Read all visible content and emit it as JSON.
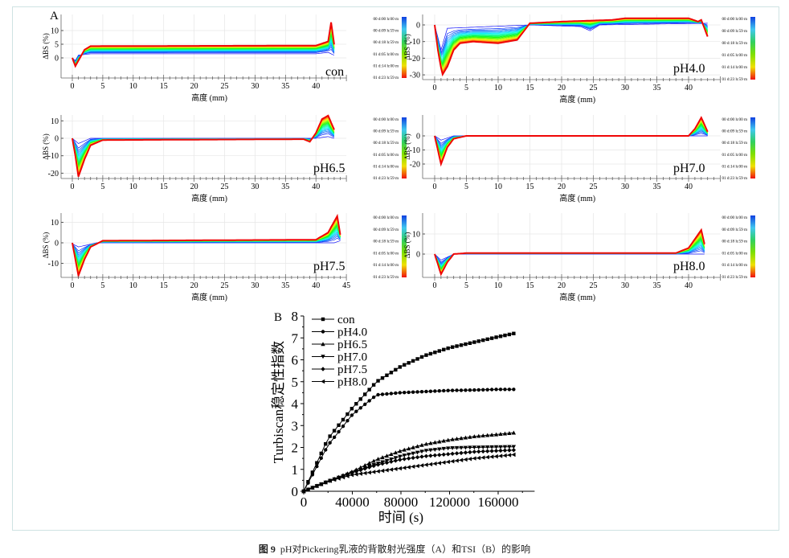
{
  "caption": {
    "figure_no": "图 9",
    "text": "pH对Pickering乳液的背散射光强度（A）和TSI（B）的影响"
  },
  "chart_data": [
    {
      "type": "line",
      "panel_label": "A",
      "label": "con",
      "xlabel": "高度 (mm)",
      "ylabel": "ΔBS (%)",
      "xticks": [
        0,
        5,
        10,
        15,
        20,
        25,
        30,
        35,
        40
      ],
      "yticks": [
        0,
        5,
        10
      ],
      "ylim": [
        -7,
        16
      ],
      "xlim": [
        -0.3,
        45
      ],
      "legend_times": [
        "00 d:00 h:00 m",
        "00 d:09 h:59 m",
        "00 d:18 h:59 m",
        "01 d:05 h:00 m",
        "01 d:14 h:00 m",
        "01 d:23 h:59 m"
      ],
      "legend_colors": [
        "#1040e0",
        "#40c8f0",
        "#30d060",
        "#80e000",
        "#f0e000",
        "#f01010"
      ],
      "initial_profile": [
        [
          0,
          0
        ],
        [
          0.5,
          -1
        ],
        [
          1,
          1
        ],
        [
          3,
          1.5
        ],
        [
          40,
          1.5
        ],
        [
          42,
          2
        ],
        [
          43,
          1
        ]
      ],
      "final_profile": [
        [
          0,
          0
        ],
        [
          0.5,
          -3
        ],
        [
          1,
          -1
        ],
        [
          2,
          3
        ],
        [
          3,
          4.3
        ],
        [
          40,
          4.5
        ],
        [
          42,
          6
        ],
        [
          42.5,
          13
        ],
        [
          43,
          5
        ]
      ]
    },
    {
      "type": "line",
      "label": "pH4.0",
      "xlabel": "高度 (mm)",
      "ylabel": "ΔBS (%)",
      "xticks": [
        0,
        5,
        10,
        15,
        20,
        25,
        30,
        35,
        40
      ],
      "yticks": [
        -30,
        -20,
        -10,
        0
      ],
      "ylim": [
        -33,
        6
      ],
      "xlim": [
        -0.3,
        45
      ],
      "legend_times": [
        "00 d:00 h:00 m",
        "00 d:09 h:59 m",
        "00 d:18 h:59 m",
        "01 d:05 h:00 m",
        "01 d:14 h:00 m",
        "01 d:23 h:59 m"
      ],
      "initial_profile": [
        [
          0,
          0
        ],
        [
          1,
          -15
        ],
        [
          2,
          -2
        ],
        [
          15,
          0
        ],
        [
          23,
          -1
        ],
        [
          24.5,
          -3.5
        ],
        [
          26,
          0
        ],
        [
          43,
          1
        ]
      ],
      "final_profile": [
        [
          0,
          0
        ],
        [
          0.5,
          -15
        ],
        [
          1.2,
          -30
        ],
        [
          2,
          -25
        ],
        [
          3,
          -15
        ],
        [
          4,
          -11
        ],
        [
          6,
          -10
        ],
        [
          10,
          -11
        ],
        [
          13,
          -9
        ],
        [
          15,
          1
        ],
        [
          20,
          2
        ],
        [
          28,
          3
        ],
        [
          30,
          4
        ],
        [
          40,
          4
        ],
        [
          41.5,
          2
        ],
        [
          42,
          3
        ],
        [
          43,
          -7
        ]
      ]
    },
    {
      "type": "line",
      "label": "pH6.5",
      "xlabel": "高度 (mm)",
      "ylabel": "ΔBS (%)",
      "xticks": [
        0,
        5,
        10,
        15,
        20,
        25,
        30,
        35,
        40
      ],
      "yticks": [
        -20,
        -10,
        0,
        10
      ],
      "ylim": [
        -23,
        13
      ],
      "xlim": [
        -0.3,
        45
      ],
      "legend_times": [
        "00 d:00 h:00 m",
        "00 d:09 h:59 m",
        "00 d:18 h:59 m",
        "01 d:05 h:00 m",
        "01 d:14 h:00 m",
        "01 d:23 h:59 m"
      ],
      "initial_profile": [
        [
          0,
          0
        ],
        [
          1,
          -3
        ],
        [
          3,
          0
        ],
        [
          40,
          0
        ],
        [
          42,
          1
        ],
        [
          43,
          0
        ]
      ],
      "final_profile": [
        [
          0,
          0
        ],
        [
          0.5,
          -10
        ],
        [
          1,
          -22
        ],
        [
          2,
          -12
        ],
        [
          3,
          -4
        ],
        [
          5,
          -1
        ],
        [
          38,
          -0.5
        ],
        [
          39,
          -2
        ],
        [
          40,
          3
        ],
        [
          41,
          11
        ],
        [
          42,
          13
        ],
        [
          43,
          5
        ]
      ]
    },
    {
      "type": "line",
      "label": "pH7.0",
      "xlabel": "高度 (mm)",
      "ylabel": "ΔBS (%)",
      "xticks": [
        0,
        5,
        10,
        15,
        20,
        25,
        30,
        35,
        40
      ],
      "yticks": [
        -20,
        -10,
        0
      ],
      "ylim": [
        -30,
        15
      ],
      "xlim": [
        -0.3,
        45
      ],
      "legend_times": [
        "00 d:00 h:00 m",
        "00 d:09 h:59 m",
        "00 d:18 h:59 m",
        "01 d:05 h:00 m",
        "01 d:14 h:00 m",
        "01 d:23 h:59 m"
      ],
      "initial_profile": [
        [
          0,
          0
        ],
        [
          1,
          -3
        ],
        [
          3,
          0
        ],
        [
          43,
          0
        ]
      ],
      "final_profile": [
        [
          0,
          0
        ],
        [
          0.5,
          -10
        ],
        [
          1,
          -20
        ],
        [
          2,
          -8
        ],
        [
          3,
          -2
        ],
        [
          5,
          0
        ],
        [
          40,
          0
        ],
        [
          41,
          5
        ],
        [
          42,
          13
        ],
        [
          43,
          3
        ]
      ]
    },
    {
      "type": "line",
      "label": "pH7.5",
      "xlabel": "高度 (mm)",
      "ylabel": "ΔBS (%)",
      "xticks": [
        0,
        5,
        10,
        15,
        20,
        25,
        30,
        35,
        40,
        45
      ],
      "yticks": [
        -10,
        0,
        10
      ],
      "ylim": [
        -17,
        14
      ],
      "xlim": [
        -0.3,
        45
      ],
      "legend_times": [
        "00 d:00 h:00 m",
        "00 d:09 h:59 m",
        "00 d:18 h:59 m",
        "01 d:05 h:00 m",
        "01 d:14 h:00 m",
        "01 d:23 h:59 m"
      ],
      "initial_profile": [
        [
          0,
          -0.5
        ],
        [
          1,
          -2
        ],
        [
          4,
          0
        ],
        [
          43,
          0
        ],
        [
          44,
          1
        ]
      ],
      "final_profile": [
        [
          0,
          0
        ],
        [
          0.5,
          -8
        ],
        [
          1,
          -16
        ],
        [
          2,
          -8
        ],
        [
          3,
          -2
        ],
        [
          5,
          1
        ],
        [
          40,
          1.5
        ],
        [
          42,
          5
        ],
        [
          43.5,
          13
        ],
        [
          44,
          4
        ]
      ]
    },
    {
      "type": "line",
      "label": "pH8.0",
      "xlabel": "高度 (mm)",
      "ylabel": "ΔBS (%)",
      "xticks": [
        0,
        5,
        10,
        15,
        20,
        25,
        30,
        35,
        40
      ],
      "yticks": [
        0,
        10
      ],
      "ylim": [
        -12,
        20
      ],
      "xlim": [
        -0.3,
        45
      ],
      "legend_times": [
        "00 d:00 h:00 m",
        "00 d:09 h:59 m",
        "00 d:18 h:59 m",
        "01 d:05 h:00 m",
        "01 d:14 h:00 m",
        "01 d:23 h:59 m"
      ],
      "initial_profile": [
        [
          0,
          0
        ],
        [
          1,
          -3
        ],
        [
          3,
          0
        ],
        [
          43,
          0
        ]
      ],
      "final_profile": [
        [
          0,
          0
        ],
        [
          0.5,
          -5
        ],
        [
          1,
          -10
        ],
        [
          2,
          -4
        ],
        [
          3,
          0
        ],
        [
          5,
          0.5
        ],
        [
          38,
          0.5
        ],
        [
          40,
          3
        ],
        [
          42,
          12
        ],
        [
          42.5,
          5
        ]
      ]
    },
    {
      "type": "line",
      "panel_label": "B",
      "xlabel": "时间 (s)",
      "ylabel": "Turbiscan稳定性指数",
      "xlim": [
        0,
        190000
      ],
      "ylim": [
        0,
        8
      ],
      "xticks": [
        0,
        40000,
        80000,
        120000,
        160000
      ],
      "yticks": [
        0,
        1,
        2,
        3,
        4,
        5,
        6,
        7,
        8
      ],
      "legend": "top-left",
      "x": [
        0,
        20000,
        40000,
        60000,
        80000,
        100000,
        120000,
        140000,
        160000,
        172800
      ],
      "series": [
        {
          "name": "con",
          "marker": "square",
          "values": [
            0,
            2.4,
            3.8,
            5.0,
            5.7,
            6.2,
            6.55,
            6.8,
            7.05,
            7.2
          ]
        },
        {
          "name": "pH4.0",
          "marker": "circle",
          "values": [
            0,
            2.1,
            3.5,
            4.4,
            4.5,
            4.55,
            4.6,
            4.62,
            4.65,
            4.65
          ]
        },
        {
          "name": "pH6.5",
          "marker": "triangle-up",
          "values": [
            0,
            0.45,
            0.9,
            1.45,
            1.85,
            2.15,
            2.35,
            2.5,
            2.6,
            2.67
          ]
        },
        {
          "name": "pH7.0",
          "marker": "triangle-down",
          "values": [
            0,
            0.45,
            0.85,
            1.25,
            1.6,
            1.85,
            1.97,
            2.0,
            2.02,
            2.03
          ]
        },
        {
          "name": "pH7.5",
          "marker": "diamond",
          "values": [
            0,
            0.45,
            0.85,
            1.2,
            1.45,
            1.6,
            1.7,
            1.8,
            1.85,
            1.88
          ]
        },
        {
          "name": "pH8.0",
          "marker": "triangle-left",
          "values": [
            0,
            0.45,
            0.75,
            0.9,
            1.05,
            1.2,
            1.35,
            1.5,
            1.6,
            1.67
          ]
        }
      ]
    }
  ]
}
